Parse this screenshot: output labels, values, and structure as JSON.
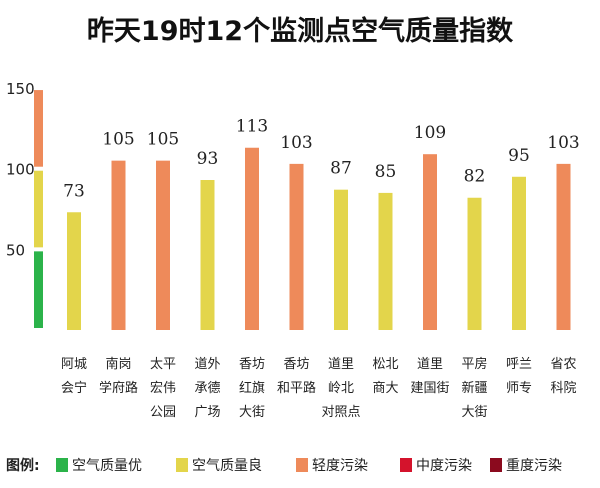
{
  "chart_data": {
    "type": "bar",
    "title": "昨天19时12个监测点空气质量指数",
    "categories": [
      [
        "阿城",
        "会宁"
      ],
      [
        "南岗",
        "学府路"
      ],
      [
        "太平",
        "宏伟",
        "公园"
      ],
      [
        "道外",
        "承德",
        "广场"
      ],
      [
        "香坊",
        "红旗",
        "大街"
      ],
      [
        "香坊",
        "和平路"
      ],
      [
        "道里",
        "岭北",
        "对照点"
      ],
      [
        "松北",
        "商大"
      ],
      [
        "道里",
        "建国街"
      ],
      [
        "平房",
        "新疆",
        "大街"
      ],
      [
        "呼兰",
        "师专"
      ],
      [
        "省农",
        "科院"
      ]
    ],
    "values": [
      73,
      105,
      105,
      93,
      113,
      103,
      87,
      85,
      109,
      82,
      95,
      103
    ],
    "ylim": [
      0,
      155
    ],
    "y_ticks": [
      50,
      100,
      150
    ],
    "scale_bands": [
      {
        "from": 0,
        "to": 50,
        "color": "#2bb34a"
      },
      {
        "from": 50,
        "to": 100,
        "color": "#e3d54b"
      },
      {
        "from": 100,
        "to": 150,
        "color": "#ee8a5a"
      }
    ],
    "legend_label": "图例:",
    "legend": [
      {
        "label": "空气质量优",
        "color": "#2bb34a"
      },
      {
        "label": "空气质量良",
        "color": "#e3d54b"
      },
      {
        "label": "轻度污染",
        "color": "#ee8a5a"
      },
      {
        "label": "中度污染",
        "color": "#d4132c"
      },
      {
        "label": "重度污染",
        "color": "#8b0a1e"
      }
    ],
    "colors": {
      "good": "#e3d54b",
      "light": "#ee8a5a",
      "axis": "#555555",
      "text": "#222222"
    }
  }
}
